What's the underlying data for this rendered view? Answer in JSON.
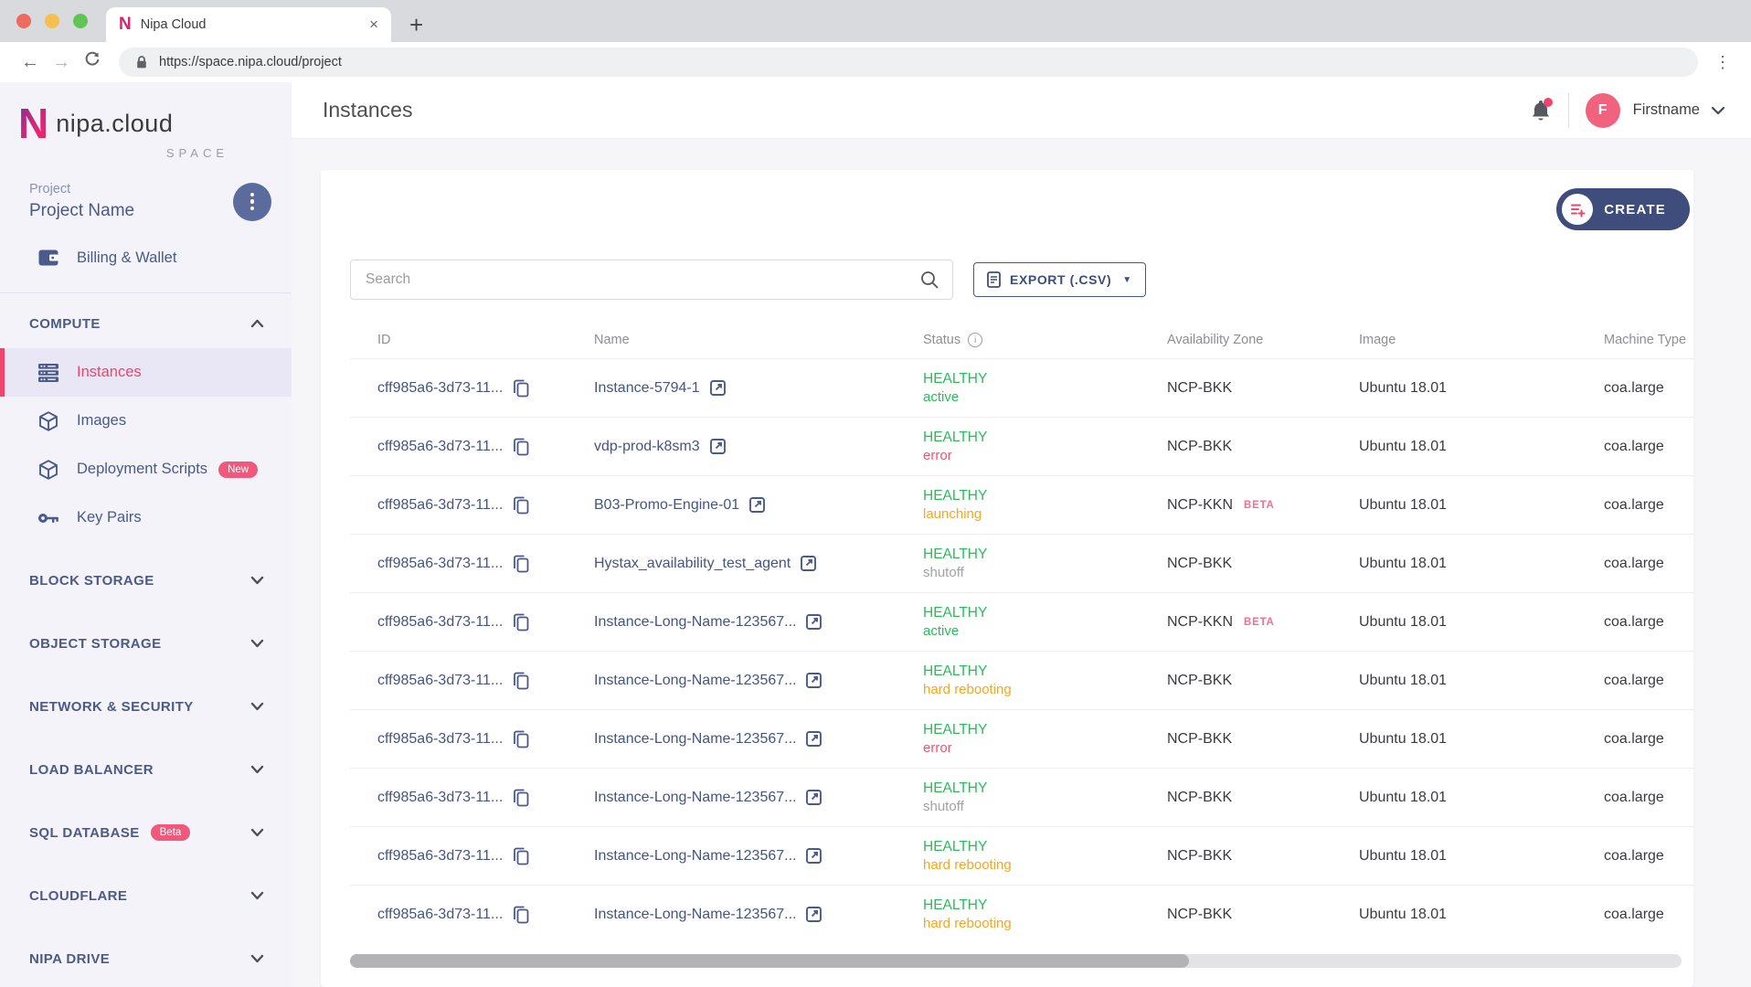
{
  "browser": {
    "tab_title": "Nipa Cloud",
    "url": "https://space.nipa.cloud/project"
  },
  "sidebar": {
    "logo_text": "nipa.cloud",
    "logo_letter": "N",
    "logo_sub": "SPACE",
    "project_label": "Project",
    "project_name": "Project Name",
    "billing_label": "Billing & Wallet",
    "sections": [
      {
        "label": "COMPUTE",
        "expanded": true,
        "items": [
          {
            "label": "Instances",
            "icon": "server-icon",
            "active": true
          },
          {
            "label": "Images",
            "icon": "cube-icon"
          },
          {
            "label": "Deployment Scripts",
            "icon": "cube-icon",
            "badge": "New"
          },
          {
            "label": "Key Pairs",
            "icon": "key-icon"
          }
        ]
      },
      {
        "label": "BLOCK STORAGE"
      },
      {
        "label": "OBJECT STORAGE"
      },
      {
        "label": "NETWORK & SECURITY"
      },
      {
        "label": "LOAD BALANCER"
      },
      {
        "label": "SQL DATABASE",
        "badge": "Beta"
      },
      {
        "label": "CLOUDFLARE"
      },
      {
        "label": "NIPA DRIVE"
      }
    ]
  },
  "header": {
    "title": "Instances",
    "user_initial": "F",
    "user_name": "Firstname"
  },
  "toolbar": {
    "create_label": "CREATE",
    "search_placeholder": "Search",
    "export_label": "EXPORT (.CSV)"
  },
  "table": {
    "columns": [
      "ID",
      "Name",
      "Status",
      "Availability Zone",
      "Image",
      "Machine Type"
    ],
    "rows": [
      {
        "id": "cff985a6-3d73-11...",
        "name": "Instance-5794-1",
        "status": "HEALTHY",
        "sub_status": "active",
        "tone": "green",
        "zone": "NCP-BKK",
        "beta": false,
        "image": "Ubuntu 18.01",
        "machine": "coa.large"
      },
      {
        "id": "cff985a6-3d73-11...",
        "name": "vdp-prod-k8sm3",
        "status": "HEALTHY",
        "sub_status": "error",
        "tone": "red",
        "zone": "NCP-BKK",
        "beta": false,
        "image": "Ubuntu 18.01",
        "machine": "coa.large"
      },
      {
        "id": "cff985a6-3d73-11...",
        "name": "B03-Promo-Engine-01",
        "status": "HEALTHY",
        "sub_status": "launching",
        "tone": "orange",
        "zone": "NCP-KKN",
        "beta": true,
        "image": "Ubuntu 18.01",
        "machine": "coa.large"
      },
      {
        "id": "cff985a6-3d73-11...",
        "name": "Hystax_availability_test_agent",
        "status": "HEALTHY",
        "sub_status": "shutoff",
        "tone": "gray",
        "zone": "NCP-BKK",
        "beta": false,
        "image": "Ubuntu 18.01",
        "machine": "coa.large"
      },
      {
        "id": "cff985a6-3d73-11...",
        "name": "Instance-Long-Name-123567...",
        "status": "HEALTHY",
        "sub_status": "active",
        "tone": "green",
        "zone": "NCP-KKN",
        "beta": true,
        "image": "Ubuntu 18.01",
        "machine": "coa.large"
      },
      {
        "id": "cff985a6-3d73-11...",
        "name": "Instance-Long-Name-123567...",
        "status": "HEALTHY",
        "sub_status": "hard rebooting",
        "tone": "orange",
        "zone": "NCP-BKK",
        "beta": false,
        "image": "Ubuntu 18.01",
        "machine": "coa.large"
      },
      {
        "id": "cff985a6-3d73-11...",
        "name": "Instance-Long-Name-123567...",
        "status": "HEALTHY",
        "sub_status": "error",
        "tone": "red",
        "zone": "NCP-BKK",
        "beta": false,
        "image": "Ubuntu 18.01",
        "machine": "coa.large"
      },
      {
        "id": "cff985a6-3d73-11...",
        "name": "Instance-Long-Name-123567...",
        "status": "HEALTHY",
        "sub_status": "shutoff",
        "tone": "gray",
        "zone": "NCP-BKK",
        "beta": false,
        "image": "Ubuntu 18.01",
        "machine": "coa.large"
      },
      {
        "id": "cff985a6-3d73-11...",
        "name": "Instance-Long-Name-123567...",
        "status": "HEALTHY",
        "sub_status": "hard rebooting",
        "tone": "orange",
        "zone": "NCP-BKK",
        "beta": false,
        "image": "Ubuntu 18.01",
        "machine": "coa.large"
      },
      {
        "id": "cff985a6-3d73-11...",
        "name": "Instance-Long-Name-123567...",
        "status": "HEALTHY",
        "sub_status": "hard rebooting",
        "tone": "orange",
        "zone": "NCP-BKK",
        "beta": false,
        "image": "Ubuntu 18.01",
        "machine": "coa.large"
      }
    ],
    "beta_tag": "BETA"
  },
  "colors": {
    "accent_pink": "#f0436d",
    "navy": "#3f4d7c",
    "status_green": "#27bd57",
    "status_orange": "#f5a623",
    "status_red": "#f4516c",
    "status_gray": "#a2a2a6"
  }
}
